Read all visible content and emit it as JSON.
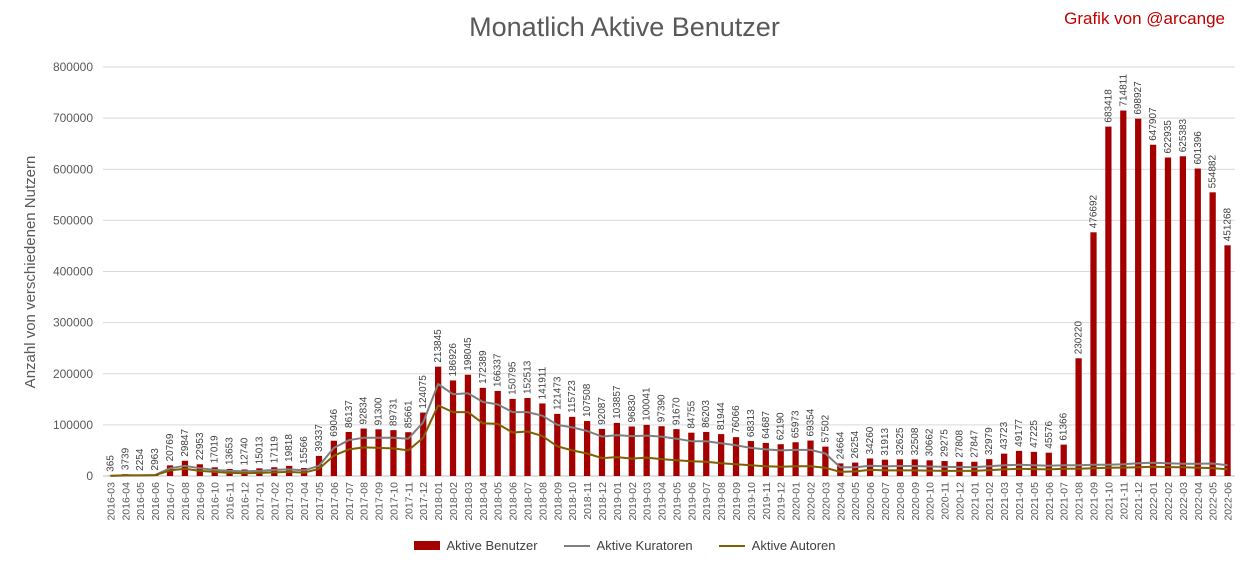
{
  "credit": "Grafik von @arcange",
  "colors": {
    "bar": "#a50000",
    "curators": "#7f7f7f",
    "authors": "#7f6000",
    "grid": "#d9d9d9"
  },
  "chart_data": {
    "type": "bar",
    "title": "Monatlich Aktive Benutzer",
    "ylabel": "Anzahl von verschiedenen Nutzern",
    "ylim": [
      0,
      800000
    ],
    "yticks": [
      0,
      100000,
      200000,
      300000,
      400000,
      500000,
      600000,
      700000,
      800000
    ],
    "legend_position": "bottom",
    "grid": true,
    "categories": [
      "2016-03",
      "2016-04",
      "2016-05",
      "2016-06",
      "2016-07",
      "2016-08",
      "2016-09",
      "2016-10",
      "2016-11",
      "2016-12",
      "2017-01",
      "2017-02",
      "2017-03",
      "2017-04",
      "2017-05",
      "2017-06",
      "2017-07",
      "2017-08",
      "2017-09",
      "2017-10",
      "2017-11",
      "2017-12",
      "2018-01",
      "2018-02",
      "2018-03",
      "2018-04",
      "2018-05",
      "2018-06",
      "2018-07",
      "2018-08",
      "2018-09",
      "2018-10",
      "2018-11",
      "2018-12",
      "2019-01",
      "2019-02",
      "2019-03",
      "2019-04",
      "2019-05",
      "2019-06",
      "2019-07",
      "2019-08",
      "2019-09",
      "2019-10",
      "2019-11",
      "2019-12",
      "2020-01",
      "2020-02",
      "2020-03",
      "2020-04",
      "2020-05",
      "2020-06",
      "2020-07",
      "2020-08",
      "2020-09",
      "2020-10",
      "2020-11",
      "2020-12",
      "2021-01",
      "2021-02",
      "2021-03",
      "2021-04",
      "2021-05",
      "2021-06",
      "2021-07",
      "2021-08",
      "2021-09",
      "2021-10",
      "2021-11",
      "2021-12",
      "2022-01",
      "2022-02",
      "2022-03",
      "2022-04",
      "2022-05",
      "2022-06"
    ],
    "series": [
      {
        "name": "Aktive Benutzer",
        "kind": "bar",
        "values": [
          365,
          3739,
          2254,
          2963,
          20769,
          29847,
          22953,
          17019,
          13653,
          12740,
          15013,
          17119,
          19818,
          15566,
          39337,
          69046,
          86137,
          92834,
          91300,
          89731,
          85661,
          124075,
          213845,
          186926,
          198045,
          172389,
          166337,
          150795,
          152513,
          141911,
          121473,
          115723,
          107508,
          92087,
          103857,
          96830,
          100041,
          97390,
          91670,
          84755,
          86203,
          81944,
          76066,
          68313,
          64687,
          62190,
          65973,
          69354,
          57502,
          24664,
          26254,
          34260,
          31913,
          32625,
          32508,
          30662,
          29275,
          27808,
          27847,
          32979,
          43723,
          49177,
          47225,
          45576,
          61366,
          230220,
          476692,
          683418,
          714811,
          698927,
          647907,
          622935,
          625383,
          601396,
          554882,
          451268
        ]
      },
      {
        "name": "Aktive Kuratoren",
        "kind": "line",
        "values": [
          300,
          1500,
          1500,
          2000,
          15000,
          20000,
          15000,
          12000,
          10000,
          9000,
          10000,
          12000,
          13000,
          11000,
          20000,
          55000,
          70000,
          75000,
          75000,
          75000,
          73000,
          105000,
          180000,
          160000,
          162000,
          145000,
          140000,
          125000,
          125000,
          118000,
          100000,
          95000,
          88000,
          77000,
          80000,
          78000,
          79000,
          77000,
          73000,
          68000,
          68000,
          64000,
          60000,
          55000,
          52000,
          50000,
          51000,
          51000,
          44000,
          17000,
          17000,
          20000,
          19000,
          19500,
          19500,
          18500,
          18000,
          17500,
          17500,
          19000,
          21000,
          22000,
          21000,
          20000,
          21000,
          21000,
          22000,
          22000,
          23000,
          25000,
          26000,
          25000,
          24000,
          24000,
          24500,
          21000
        ]
      },
      {
        "name": "Aktive Autoren",
        "kind": "line",
        "values": [
          200,
          1000,
          1000,
          1500,
          11000,
          14000,
          10000,
          8000,
          6000,
          5500,
          6000,
          7000,
          8000,
          6500,
          14000,
          40000,
          52000,
          56000,
          55000,
          54000,
          50000,
          75000,
          138000,
          125000,
          125000,
          103000,
          102000,
          85000,
          87000,
          78000,
          58000,
          50000,
          44000,
          35000,
          37000,
          34000,
          36000,
          33000,
          31000,
          29000,
          28000,
          25000,
          23000,
          21000,
          19000,
          18000,
          19000,
          19000,
          16000,
          8000,
          9000,
          12000,
          11000,
          11000,
          11000,
          10500,
          10000,
          10000,
          10000,
          11500,
          13000,
          14000,
          13500,
          13000,
          14000,
          14000,
          15000,
          16000,
          16500,
          17000,
          18000,
          17500,
          17000,
          16000,
          15500,
          13000
        ]
      }
    ]
  }
}
